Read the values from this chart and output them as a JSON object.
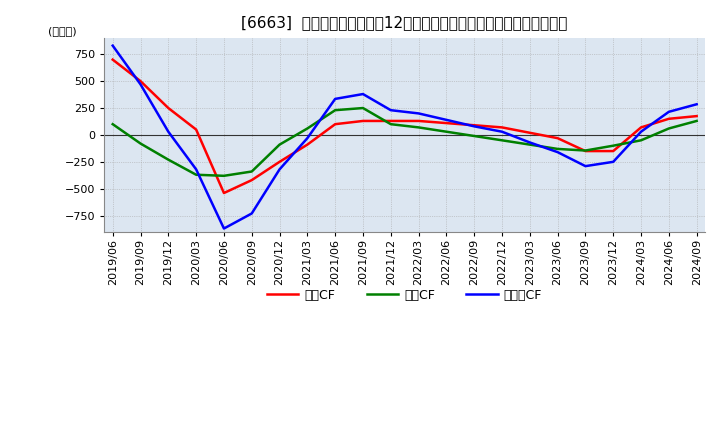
{
  "title": "[6663]  キャッシュフローの12か月移動合計の対前年同期増減額の推移",
  "ylabel": "(百万円)",
  "ylim": [
    -900,
    900
  ],
  "yticks": [
    -750,
    -500,
    -250,
    0,
    250,
    500,
    750
  ],
  "x_labels": [
    "2019/06",
    "2019/09",
    "2019/12",
    "2020/03",
    "2020/06",
    "2020/09",
    "2020/12",
    "2021/03",
    "2021/06",
    "2021/09",
    "2021/12",
    "2022/03",
    "2022/06",
    "2022/09",
    "2022/12",
    "2023/03",
    "2023/06",
    "2023/09",
    "2023/12",
    "2024/03",
    "2024/06",
    "2024/09"
  ],
  "operating_cf": [
    700,
    500,
    250,
    50,
    -540,
    -420,
    -250,
    -90,
    100,
    130,
    130,
    130,
    110,
    90,
    70,
    20,
    -30,
    -150,
    -150,
    70,
    150,
    175
  ],
  "investing_cf": [
    100,
    -80,
    -230,
    -370,
    -380,
    -340,
    -90,
    60,
    230,
    250,
    100,
    70,
    30,
    -10,
    -50,
    -90,
    -130,
    -145,
    -100,
    -50,
    60,
    130
  ],
  "free_cf": [
    830,
    470,
    30,
    -320,
    -870,
    -730,
    -320,
    -30,
    335,
    380,
    230,
    200,
    140,
    80,
    30,
    -70,
    -160,
    -290,
    -250,
    30,
    215,
    285
  ],
  "colors": {
    "operating": "#ff0000",
    "investing": "#008000",
    "free": "#0000ff"
  },
  "legend_labels": [
    "営業CF",
    "投資CF",
    "フリーCF"
  ],
  "background_color": "#ffffff",
  "plot_bg_color": "#dce6f1",
  "grid_color": "#aaaaaa",
  "line_width": 1.8,
  "title_fontsize": 11,
  "tick_fontsize": 8,
  "ylabel_fontsize": 8
}
